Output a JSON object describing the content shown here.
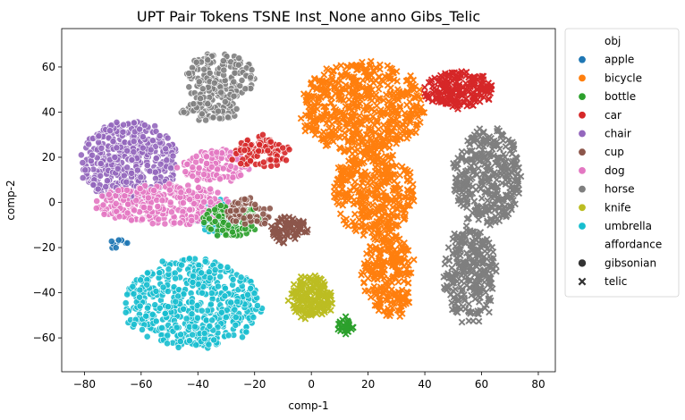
{
  "chart_data": {
    "type": "scatter",
    "title": "UPT Pair Tokens TSNE Inst_None anno Gibs_Telic",
    "xlabel": "comp-1",
    "ylabel": "comp-2",
    "xlim": [
      -88,
      86
    ],
    "ylim": [
      -75,
      77
    ],
    "xticks": [
      -80,
      -60,
      -40,
      -20,
      0,
      20,
      40,
      60,
      80
    ],
    "yticks": [
      -60,
      -40,
      -20,
      0,
      20,
      40,
      60
    ],
    "grid": false,
    "legend_position": "outside-right",
    "legend": {
      "hue_title": "obj",
      "style_title": "affordance",
      "categories": [
        {
          "label": "apple",
          "color": "#1f77b4"
        },
        {
          "label": "bicycle",
          "color": "#ff7f0e"
        },
        {
          "label": "bottle",
          "color": "#2ca02c"
        },
        {
          "label": "car",
          "color": "#d62728"
        },
        {
          "label": "chair",
          "color": "#9467bd"
        },
        {
          "label": "cup",
          "color": "#8c564b"
        },
        {
          "label": "dog",
          "color": "#e377c2"
        },
        {
          "label": "horse",
          "color": "#7f7f7f"
        },
        {
          "label": "knife",
          "color": "#bcbd22"
        },
        {
          "label": "umbrella",
          "color": "#17becf"
        }
      ],
      "styles": [
        {
          "label": "gibsonian",
          "marker": "circle"
        },
        {
          "label": "telic",
          "marker": "x"
        }
      ]
    },
    "clusters": [
      {
        "obj": "umbrella",
        "aff": "gibsonian",
        "cx": -42,
        "cy": -45,
        "rx": 24,
        "ry": 20,
        "n": 520
      },
      {
        "obj": "umbrella",
        "aff": "gibsonian",
        "cx": -32,
        "cy": -6,
        "rx": 8,
        "ry": 8,
        "n": 60
      },
      {
        "obj": "chair",
        "aff": "gibsonian",
        "cx": -64,
        "cy": 18,
        "rx": 17,
        "ry": 18,
        "n": 460
      },
      {
        "obj": "dog",
        "aff": "gibsonian",
        "cx": -52,
        "cy": -1,
        "rx": 24,
        "ry": 9,
        "n": 320
      },
      {
        "obj": "dog",
        "aff": "gibsonian",
        "cx": -34,
        "cy": 16,
        "rx": 12,
        "ry": 7,
        "n": 110
      },
      {
        "obj": "horse",
        "aff": "gibsonian",
        "cx": -32,
        "cy": 55,
        "rx": 12,
        "ry": 11,
        "n": 160
      },
      {
        "obj": "horse",
        "aff": "gibsonian",
        "cx": -36,
        "cy": 41,
        "rx": 10,
        "ry": 5,
        "n": 70
      },
      {
        "obj": "bottle",
        "aff": "gibsonian",
        "cx": -28,
        "cy": -8,
        "rx": 10,
        "ry": 7,
        "n": 110
      },
      {
        "obj": "cup",
        "aff": "gibsonian",
        "cx": -22,
        "cy": -4,
        "rx": 8,
        "ry": 6,
        "n": 60
      },
      {
        "obj": "car",
        "aff": "gibsonian",
        "cx": -18,
        "cy": 22,
        "rx": 10,
        "ry": 7,
        "n": 90
      },
      {
        "obj": "apple",
        "aff": "gibsonian",
        "cx": -68,
        "cy": -18,
        "rx": 3,
        "ry": 2,
        "n": 12
      },
      {
        "obj": "bicycle",
        "aff": "telic",
        "cx": 18,
        "cy": 42,
        "rx": 22,
        "ry": 20,
        "n": 560
      },
      {
        "obj": "bicycle",
        "aff": "telic",
        "cx": 22,
        "cy": 5,
        "rx": 14,
        "ry": 20,
        "n": 360
      },
      {
        "obj": "bicycle",
        "aff": "telic",
        "cx": 27,
        "cy": -32,
        "rx": 9,
        "ry": 20,
        "n": 240
      },
      {
        "obj": "horse",
        "aff": "telic",
        "cx": 62,
        "cy": 12,
        "rx": 12,
        "ry": 22,
        "n": 360
      },
      {
        "obj": "horse",
        "aff": "telic",
        "cx": 56,
        "cy": -32,
        "rx": 9,
        "ry": 22,
        "n": 260
      },
      {
        "obj": "car",
        "aff": "telic",
        "cx": 52,
        "cy": 50,
        "rx": 12,
        "ry": 8,
        "n": 200
      },
      {
        "obj": "cup",
        "aff": "telic",
        "cx": -8,
        "cy": -12,
        "rx": 7,
        "ry": 6,
        "n": 80
      },
      {
        "obj": "knife",
        "aff": "telic",
        "cx": 0,
        "cy": -42,
        "rx": 7,
        "ry": 10,
        "n": 170
      },
      {
        "obj": "bottle",
        "aff": "telic",
        "cx": 12,
        "cy": -55,
        "rx": 3,
        "ry": 3,
        "n": 30
      }
    ]
  }
}
